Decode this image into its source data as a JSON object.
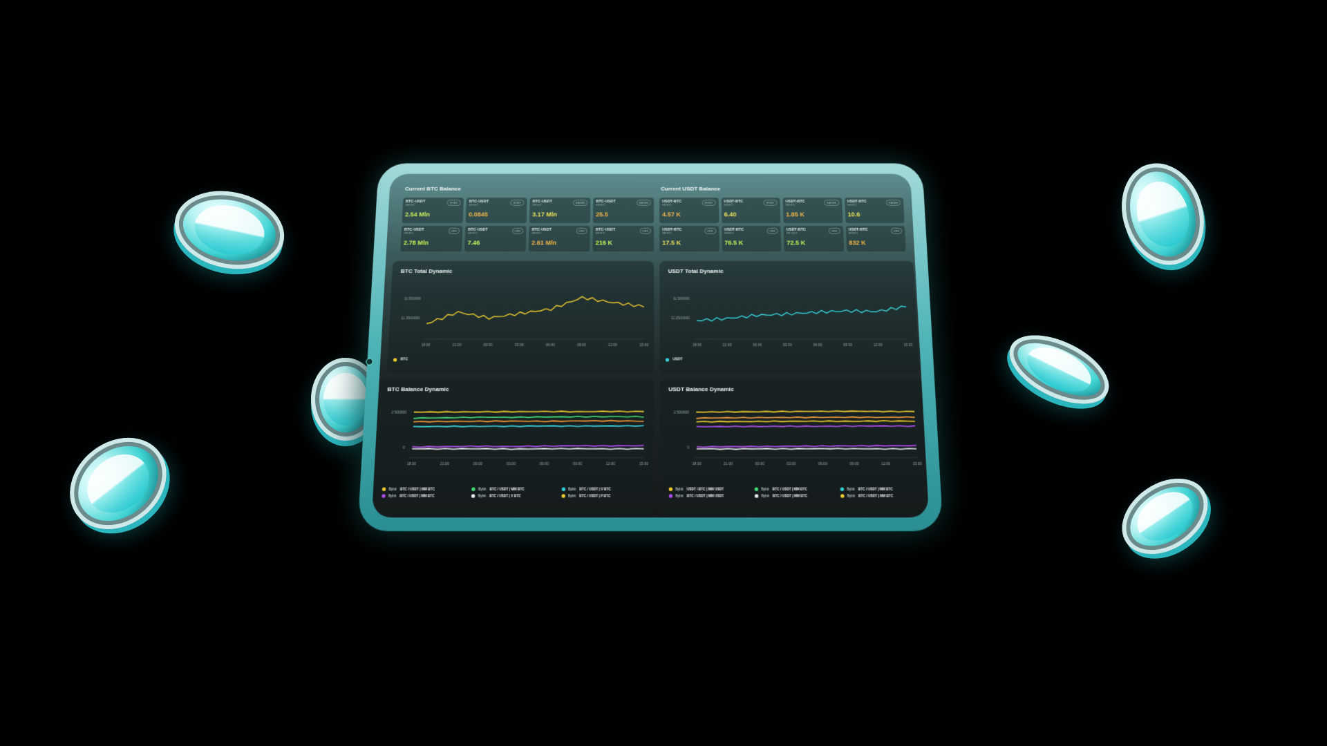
{
  "colors": {
    "yellow": "#f2cf2e",
    "cyan": "#36d3d8",
    "green": "#44dd77",
    "purple": "#b04cf0",
    "white": "#e9eeee",
    "orange": "#f39c3a",
    "teal_bezel": "#4fb4b7"
  },
  "btc_balance": {
    "title": "Current BTC Balance",
    "tiles": [
      {
        "pair": "BTC-USDT",
        "sub": "MM BTC",
        "exchange": "BYBIT",
        "value": "2.54 Mln",
        "tone": "g"
      },
      {
        "pair": "BTC-USDT",
        "sub": "MM BTC",
        "exchange": "BYBIT",
        "value": "0.0845",
        "tone": "o"
      },
      {
        "pair": "BTC-USDT",
        "sub": "MM BTC",
        "exchange": "KAYEN",
        "value": "3.17 Mln",
        "tone": "y"
      },
      {
        "pair": "BTC-USDT",
        "sub": "MM BTC",
        "exchange": "KAYEN",
        "value": "25.5",
        "tone": "o"
      },
      {
        "pair": "BTC-USDT",
        "sub": "MM BTC",
        "exchange": "OKX",
        "value": "2.78 Mln",
        "tone": "g"
      },
      {
        "pair": "BTC-USDT",
        "sub": "MM BTC",
        "exchange": "OKX",
        "value": "7.46",
        "tone": "g"
      },
      {
        "pair": "BTC-USDT",
        "sub": "MM BTC",
        "exchange": "OKX",
        "value": "2.61 Mln",
        "tone": "o"
      },
      {
        "pair": "BTC-USDT",
        "sub": "MM BTC",
        "exchange": "OKX",
        "value": "216 K",
        "tone": "g"
      }
    ]
  },
  "usdt_balance": {
    "title": "Current USDT Balance",
    "tiles": [
      {
        "pair": "USDT-BTC",
        "sub": "MM BTC",
        "exchange": "BYBIT",
        "value": "4.57 K",
        "tone": "o"
      },
      {
        "pair": "USDT-BTC",
        "sub": "MM BTC",
        "exchange": "BYBIT",
        "value": "6.40",
        "tone": "y"
      },
      {
        "pair": "USDT-BTC",
        "sub": "MM BTC",
        "exchange": "KAYEN",
        "value": "1.85 K",
        "tone": "o"
      },
      {
        "pair": "USDT-BTC",
        "sub": "MM BTC",
        "exchange": "KAYEN",
        "value": "10.6",
        "tone": "y"
      },
      {
        "pair": "USDT-BTC",
        "sub": "MM BTC",
        "exchange": "OKX",
        "value": "17.5 K",
        "tone": "y"
      },
      {
        "pair": "USDT-BTC",
        "sub": "MM BTC",
        "exchange": "OKX",
        "value": "76.5 K",
        "tone": "g"
      },
      {
        "pair": "USDT-BTC",
        "sub": "PM USDT",
        "exchange": "OKX",
        "value": "72.5 K",
        "tone": "g"
      },
      {
        "pair": "USDT-BTC",
        "sub": "MM BTC",
        "exchange": "OKX",
        "value": "832 K",
        "tone": "o"
      }
    ]
  },
  "btc_total": {
    "title": "BTC Total Dynamic",
    "legend": "BTC"
  },
  "usdt_total": {
    "title": "USDT Total Dynamic",
    "legend": "USDT"
  },
  "btc_dynamic": {
    "title": "BTC Balance Dynamic",
    "legend": [
      {
        "exchange": "Bybit:",
        "pair": "BTC / USDT | MM BTC",
        "color": "#f2cf2e"
      },
      {
        "exchange": "Bybit:",
        "pair": "BTC / USDT | MM BTC",
        "color": "#44dd77"
      },
      {
        "exchange": "Bybit:",
        "pair": "BTC / USDT | V BTC",
        "color": "#36d3d8"
      },
      {
        "exchange": "Bybit:",
        "pair": "BTC / USDT | MM BTC",
        "color": "#b04cf0"
      },
      {
        "exchange": "Bybit:",
        "pair": "BTC / USDT | V BTC",
        "color": "#e9eeee"
      },
      {
        "exchange": "Bybit:",
        "pair": "BTC / USDT | P BTC",
        "color": "#f2cf2e"
      }
    ]
  },
  "usdt_dynamic": {
    "title": "USDT Balance Dynamic",
    "legend": [
      {
        "exchange": "Bybit:",
        "pair": "USDT / BTC | MM USDT",
        "color": "#f2cf2e"
      },
      {
        "exchange": "Bybit:",
        "pair": "BTC / USDT | MM BTC",
        "color": "#44dd77"
      },
      {
        "exchange": "Bybit:",
        "pair": "BTC / USDT | MM BTC",
        "color": "#36d3d8"
      },
      {
        "exchange": "Bybit:",
        "pair": "BTC / USDT | MM USDT",
        "color": "#b04cf0"
      },
      {
        "exchange": "Bybit:",
        "pair": "BTC / USDT | MM BTC",
        "color": "#e9eeee"
      },
      {
        "exchange": "Bybit:",
        "pair": "BTC / USDT | MM BTC",
        "color": "#f2cf2e"
      }
    ]
  },
  "chart_data": [
    {
      "type": "line",
      "title": "BTC Total Dynamic",
      "x": [
        "18:00",
        "21:00",
        "00:00",
        "03:00",
        "06:00",
        "09:00",
        "12:00",
        "15:00"
      ],
      "ytick_labels": [
        "11 500000",
        "11 2500000"
      ],
      "ylim": [
        11000000,
        11700000
      ],
      "legend_position": "bottom-left",
      "series": [
        {
          "name": "BTC",
          "color": "#f2cf2e",
          "values": [
            11150000,
            11330000,
            11240000,
            11310000,
            11380000,
            11560000,
            11480000,
            11420000
          ]
        }
      ]
    },
    {
      "type": "line",
      "title": "USDT Total Dynamic",
      "x": [
        "18:00",
        "21:00",
        "00:00",
        "03:00",
        "06:00",
        "09:00",
        "12:00",
        "15:00"
      ],
      "ytick_labels": [
        "11 500000",
        "11 2500000"
      ],
      "ylim": [
        11000000,
        11700000
      ],
      "legend_position": "bottom-left",
      "series": [
        {
          "name": "USDT",
          "color": "#36d3d8",
          "values": [
            11200000,
            11230000,
            11280000,
            11300000,
            11330000,
            11350000,
            11340000,
            11420000
          ]
        }
      ]
    },
    {
      "type": "line",
      "title": "BTC Balance Dynamic",
      "x": [
        "18:00",
        "21:00",
        "00:00",
        "03:00",
        "06:00",
        "09:00",
        "12:00",
        "15:00"
      ],
      "ytick_labels": [
        "2 500000",
        "0"
      ],
      "ylim": [
        -300000,
        3000000
      ],
      "legend_position": "bottom",
      "series": [
        {
          "color": "#f2cf2e",
          "values": [
            2480000,
            2490000,
            2500000,
            2510000,
            2520000,
            2510000,
            2530000,
            2520000
          ]
        },
        {
          "color": "#44dd77",
          "values": [
            2050000,
            2080000,
            2120000,
            2110000,
            2140000,
            2150000,
            2160000,
            2150000
          ]
        },
        {
          "color": "#f39c3a",
          "values": [
            1800000,
            1820000,
            1830000,
            1840000,
            1830000,
            1850000,
            1860000,
            1840000
          ]
        },
        {
          "color": "#36d3d8",
          "values": [
            1450000,
            1470000,
            1480000,
            1480000,
            1500000,
            1490000,
            1500000,
            1510000
          ]
        },
        {
          "color": "#b04cf0",
          "values": [
            30000,
            50000,
            80000,
            60000,
            90000,
            110000,
            100000,
            120000
          ]
        },
        {
          "color": "#e9eeee",
          "values": [
            -100000,
            -110000,
            -100000,
            -120000,
            -100000,
            -90000,
            -110000,
            -100000
          ]
        }
      ]
    },
    {
      "type": "line",
      "title": "USDT Balance Dynamic",
      "x": [
        "18:00",
        "21:00",
        "00:00",
        "03:00",
        "06:00",
        "09:00",
        "12:00",
        "15:00"
      ],
      "ytick_labels": [
        "2 500000",
        "0"
      ],
      "ylim": [
        -300000,
        3000000
      ],
      "legend_position": "bottom",
      "series": [
        {
          "color": "#f2cf2e",
          "values": [
            2480000,
            2500000,
            2510000,
            2520000,
            2530000,
            2540000,
            2530000,
            2520000
          ]
        },
        {
          "color": "#f39c3a",
          "values": [
            2050000,
            2080000,
            2090000,
            2100000,
            2110000,
            2120000,
            2110000,
            2130000
          ]
        },
        {
          "color": "#f2cf2e",
          "values": [
            1800000,
            1810000,
            1820000,
            1830000,
            1840000,
            1830000,
            1850000,
            1840000
          ]
        },
        {
          "color": "#b04cf0",
          "values": [
            1450000,
            1460000,
            1470000,
            1480000,
            1480000,
            1490000,
            1500000,
            1490000
          ]
        },
        {
          "color": "#b04cf0",
          "values": [
            30000,
            50000,
            60000,
            80000,
            90000,
            100000,
            110000,
            120000
          ]
        },
        {
          "color": "#e9eeee",
          "values": [
            -100000,
            -120000,
            -100000,
            -110000,
            -90000,
            -100000,
            -110000,
            -100000
          ]
        }
      ]
    }
  ]
}
